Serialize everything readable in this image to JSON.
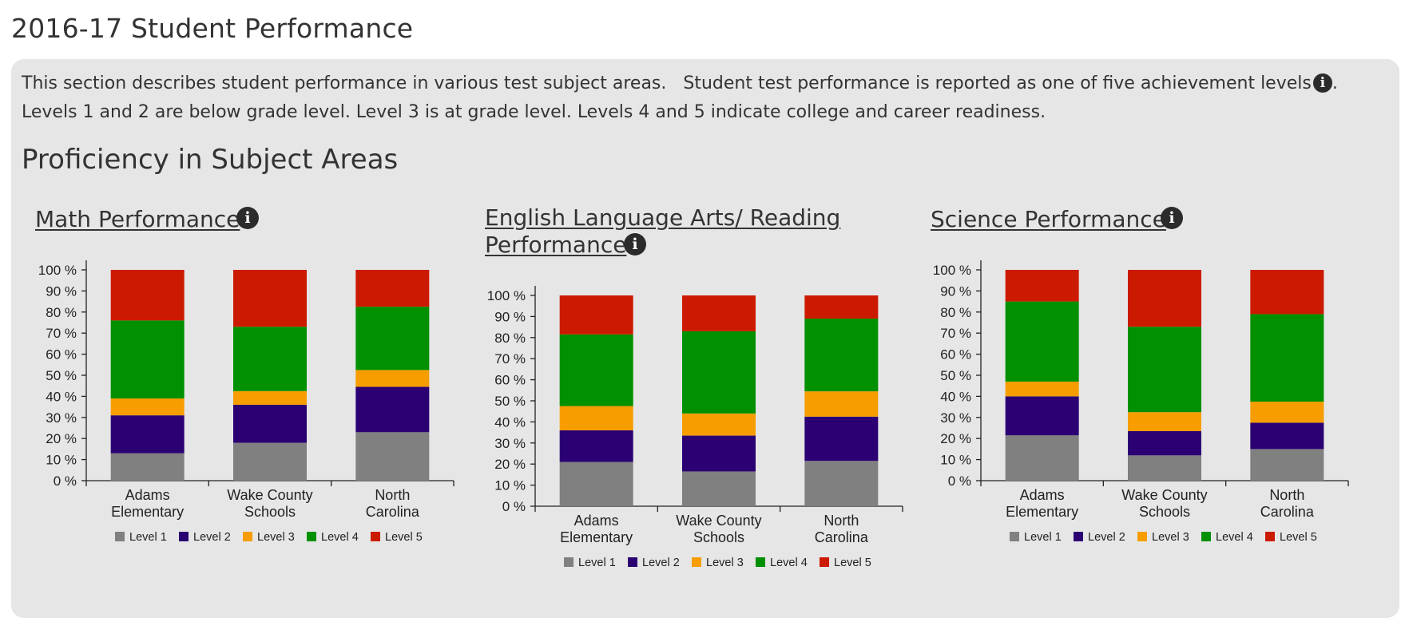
{
  "header": {
    "title": "2016-17 Student Performance"
  },
  "intro": {
    "line1_before_icon": "This section describes student performance in various test subject areas.   Student test performance is reported as one of five achievement levels",
    "line1_after_icon": ".",
    "line2": "Levels 1 and 2 are below grade level. Level 3 is at grade level. Levels 4 and 5 indicate college and career readiness."
  },
  "section": {
    "title": "Proficiency in Subject Areas"
  },
  "icons": {
    "info": "info-icon",
    "info_glyph": "i"
  },
  "colors": {
    "level1": "#808080",
    "level2": "#2b0073",
    "level3": "#f79d00",
    "level4": "#009000",
    "level5": "#cc1a00",
    "panel": "#e6e6e6"
  },
  "chart_data": [
    {
      "type": "bar",
      "stacked": true,
      "title": "Math Performance",
      "categories": [
        "Adams Elementary",
        "Wake County Schools",
        "North Carolina"
      ],
      "y_ticks": [
        "0 %",
        "10 %",
        "20 %",
        "30 %",
        "40 %",
        "50 %",
        "60 %",
        "70 %",
        "80 %",
        "90 %",
        "100 %"
      ],
      "ylim": [
        0,
        100
      ],
      "legend_position": "bottom",
      "series": [
        {
          "name": "Level 1",
          "values": [
            13,
            18,
            23
          ]
        },
        {
          "name": "Level 2",
          "values": [
            18,
            18,
            21.5
          ]
        },
        {
          "name": "Level 3",
          "values": [
            8,
            6.5,
            8
          ]
        },
        {
          "name": "Level 4",
          "values": [
            37,
            30.5,
            30
          ]
        },
        {
          "name": "Level 5",
          "values": [
            24,
            27,
            17.5
          ]
        }
      ]
    },
    {
      "type": "bar",
      "stacked": true,
      "title": "English Language Arts/ Reading Performance",
      "categories": [
        "Adams Elementary",
        "Wake County Schools",
        "North Carolina"
      ],
      "y_ticks": [
        "0 %",
        "10 %",
        "20 %",
        "30 %",
        "40 %",
        "50 %",
        "60 %",
        "70 %",
        "80 %",
        "90 %",
        "100 %"
      ],
      "ylim": [
        0,
        100
      ],
      "legend_position": "bottom",
      "series": [
        {
          "name": "Level 1",
          "values": [
            21,
            16.5,
            21.5
          ]
        },
        {
          "name": "Level 2",
          "values": [
            15,
            17,
            21
          ]
        },
        {
          "name": "Level 3",
          "values": [
            11.5,
            10.5,
            12
          ]
        },
        {
          "name": "Level 4",
          "values": [
            34,
            39,
            34.5
          ]
        },
        {
          "name": "Level 5",
          "values": [
            18.5,
            17,
            11
          ]
        }
      ]
    },
    {
      "type": "bar",
      "stacked": true,
      "title": "Science Performance",
      "categories": [
        "Adams Elementary",
        "Wake County Schools",
        "North Carolina"
      ],
      "y_ticks": [
        "0 %",
        "10 %",
        "20 %",
        "30 %",
        "40 %",
        "50 %",
        "60 %",
        "70 %",
        "80 %",
        "90 %",
        "100 %"
      ],
      "ylim": [
        0,
        100
      ],
      "legend_position": "bottom",
      "series": [
        {
          "name": "Level 1",
          "values": [
            21.5,
            12,
            15
          ]
        },
        {
          "name": "Level 2",
          "values": [
            18.5,
            11.5,
            12.5
          ]
        },
        {
          "name": "Level 3",
          "values": [
            7,
            9,
            10
          ]
        },
        {
          "name": "Level 4",
          "values": [
            38,
            40.5,
            41.5
          ]
        },
        {
          "name": "Level 5",
          "values": [
            15,
            27,
            21
          ]
        }
      ]
    }
  ]
}
